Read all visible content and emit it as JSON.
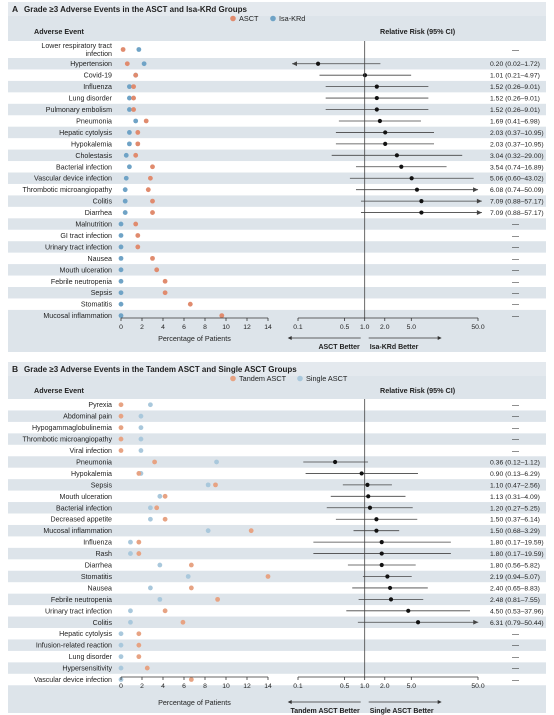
{
  "colors": {
    "panel_bg": "#dde4ea",
    "stripe": "#ffffff",
    "header_band": "#e4e9ee",
    "arm1": "#e08b6e",
    "arm2": "#6fa3c6",
    "tandem": "#e7a383",
    "single": "#a9c8dc",
    "ci_point": "#111111",
    "ci_line": "#444444",
    "ci_line_light": "#8f8f8f"
  },
  "panels": [
    {
      "letter": "A",
      "title": "Grade ≥3 Adverse Events in the ASCT and Isa-KRd Groups",
      "legend": [
        "ASCT",
        "Isa-KRd"
      ],
      "event_header": "Adverse Event",
      "rr_header": "Relative Risk (95% CI)",
      "xlabel_pct": "Percentage of Patients",
      "pct_ticks": [
        "0",
        "2",
        "4",
        "6",
        "8",
        "10",
        "12",
        "14"
      ],
      "rr_ticks": [
        "0.1",
        "0.5",
        "1.0",
        "2.0",
        "5.0",
        "50.0"
      ],
      "better_left": "ASCT Better",
      "better_right": "Isa-KRd Better"
    },
    {
      "letter": "B",
      "title": "Grade ≥3 Adverse Events in the Tandem ASCT and Single ASCT Groups",
      "legend": [
        "Tandem ASCT",
        "Single ASCT"
      ],
      "event_header": "Adverse Event",
      "rr_header": "Relative Risk (95% CI)",
      "xlabel_pct": "Percentage of Patients",
      "pct_ticks": [
        "0",
        "2",
        "4",
        "6",
        "8",
        "10",
        "12",
        "14"
      ],
      "rr_ticks": [
        "0.1",
        "0.5",
        "1.0",
        "2.0",
        "5.0",
        "50.0"
      ],
      "better_left": "Tandem ASCT Better",
      "better_right": "Single ASCT Better"
    }
  ],
  "chart_data": [
    {
      "type": "forest",
      "title": "Grade ≥3 Adverse Events in the ASCT and Isa-KRd Groups",
      "series": [
        {
          "name": "ASCT"
        },
        {
          "name": "Isa-KRd"
        }
      ],
      "pct_xlim": [
        0,
        14
      ],
      "rr_scale": "log",
      "rr_xlim": [
        0.1,
        50
      ],
      "rows": [
        {
          "event": "Lower respiratory tract infection",
          "a": 0.2,
          "b": 1.7,
          "rr": null,
          "lo": null,
          "hi": null,
          "ci": "—"
        },
        {
          "event": "Hypertension",
          "a": 0.6,
          "b": 2.2,
          "rr": 0.2,
          "lo": 0.02,
          "hi": 1.72,
          "ci": "0.20 (0.02–1.72)",
          "arrow_left": true
        },
        {
          "event": "Covid-19",
          "a": 1.4,
          "b": 1.4,
          "rr": 1.01,
          "lo": 0.21,
          "hi": 4.97,
          "ci": "1.01 (0.21–4.97)"
        },
        {
          "event": "Influenza",
          "a": 1.2,
          "b": 0.8,
          "rr": 1.52,
          "lo": 0.26,
          "hi": 9.01,
          "ci": "1.52 (0.26–9.01)"
        },
        {
          "event": "Lung disorder",
          "a": 1.2,
          "b": 0.8,
          "rr": 1.52,
          "lo": 0.26,
          "hi": 9.01,
          "ci": "1.52 (0.26–9.01)"
        },
        {
          "event": "Pulmonary embolism",
          "a": 1.2,
          "b": 0.8,
          "rr": 1.52,
          "lo": 0.26,
          "hi": 9.01,
          "ci": "1.52 (0.26–9.01)"
        },
        {
          "event": "Pneumonia",
          "a": 2.4,
          "b": 1.4,
          "rr": 1.69,
          "lo": 0.41,
          "hi": 6.98,
          "ci": "1.69 (0.41–6.98)"
        },
        {
          "event": "Hepatic cytolysis",
          "a": 1.6,
          "b": 0.8,
          "rr": 2.03,
          "lo": 0.37,
          "hi": 10.95,
          "ci": "2.03 (0.37–10.95)"
        },
        {
          "event": "Hypokalemia",
          "a": 1.6,
          "b": 0.8,
          "rr": 2.03,
          "lo": 0.37,
          "hi": 10.95,
          "ci": "2.03 (0.37–10.95)"
        },
        {
          "event": "Cholestasis",
          "a": 1.4,
          "b": 0.5,
          "rr": 3.04,
          "lo": 0.32,
          "hi": 29.0,
          "ci": "3.04 (0.32–29.00)"
        },
        {
          "event": "Bacterial infection",
          "a": 3.0,
          "b": 0.8,
          "rr": 3.54,
          "lo": 0.74,
          "hi": 16.89,
          "ci": "3.54 (0.74–16.89)"
        },
        {
          "event": "Vascular device infection",
          "a": 2.8,
          "b": 0.5,
          "rr": 5.06,
          "lo": 0.6,
          "hi": 43.02,
          "ci": "5.06 (0.60–43.02)"
        },
        {
          "event": "Thrombotic microangiopathy",
          "a": 2.6,
          "b": 0.4,
          "rr": 6.08,
          "lo": 0.74,
          "hi": 50.09,
          "ci": "6.08 (0.74–50.09)",
          "arrow_right": true
        },
        {
          "event": "Colitis",
          "a": 3.0,
          "b": 0.4,
          "rr": 7.09,
          "lo": 0.88,
          "hi": 57.17,
          "ci": "7.09 (0.88–57.17)",
          "arrow_right": true
        },
        {
          "event": "Diarrhea",
          "a": 3.0,
          "b": 0.4,
          "rr": 7.09,
          "lo": 0.88,
          "hi": 57.17,
          "ci": "7.09 (0.88–57.17)",
          "arrow_right": true
        },
        {
          "event": "Malnutrition",
          "a": 1.4,
          "b": 0.0,
          "rr": null,
          "lo": null,
          "hi": null,
          "ci": "—"
        },
        {
          "event": "GI tract infection",
          "a": 1.6,
          "b": 0.0,
          "rr": null,
          "lo": null,
          "hi": null,
          "ci": "—"
        },
        {
          "event": "Urinary tract infection",
          "a": 1.6,
          "b": 0.0,
          "rr": null,
          "lo": null,
          "hi": null,
          "ci": "—"
        },
        {
          "event": "Nausea",
          "a": 3.0,
          "b": 0.0,
          "rr": null,
          "lo": null,
          "hi": null,
          "ci": "—"
        },
        {
          "event": "Mouth ulceration",
          "a": 3.4,
          "b": 0.0,
          "rr": null,
          "lo": null,
          "hi": null,
          "ci": "—"
        },
        {
          "event": "Febrile neutropenia",
          "a": 4.2,
          "b": 0.0,
          "rr": null,
          "lo": null,
          "hi": null,
          "ci": "—"
        },
        {
          "event": "Sepsis",
          "a": 4.2,
          "b": 0.0,
          "rr": null,
          "lo": null,
          "hi": null,
          "ci": "—"
        },
        {
          "event": "Stomatitis",
          "a": 6.6,
          "b": 0.0,
          "rr": null,
          "lo": null,
          "hi": null,
          "ci": "—"
        },
        {
          "event": "Mucosal inflammation",
          "a": 9.6,
          "b": 0.0,
          "rr": null,
          "lo": null,
          "hi": null,
          "ci": "—"
        }
      ]
    },
    {
      "type": "forest",
      "title": "Grade ≥3 Adverse Events in the Tandem ASCT and Single ASCT Groups",
      "series": [
        {
          "name": "Tandem ASCT"
        },
        {
          "name": "Single ASCT"
        }
      ],
      "pct_xlim": [
        0,
        14
      ],
      "rr_scale": "log",
      "rr_xlim": [
        0.1,
        50
      ],
      "rows": [
        {
          "event": "Pyrexia",
          "a": 0.0,
          "b": 2.8,
          "rr": null,
          "lo": null,
          "hi": null,
          "ci": "—"
        },
        {
          "event": "Abdominal pain",
          "a": 0.0,
          "b": 1.9,
          "rr": null,
          "lo": null,
          "hi": null,
          "ci": "—"
        },
        {
          "event": "Hypogammaglobulinemia",
          "a": 0.0,
          "b": 1.9,
          "rr": null,
          "lo": null,
          "hi": null,
          "ci": "—"
        },
        {
          "event": "Thrombotic microangiopathy",
          "a": 0.0,
          "b": 1.9,
          "rr": null,
          "lo": null,
          "hi": null,
          "ci": "—"
        },
        {
          "event": "Viral infection",
          "a": 0.0,
          "b": 1.9,
          "rr": null,
          "lo": null,
          "hi": null,
          "ci": "—"
        },
        {
          "event": "Pneumonia",
          "a": 3.2,
          "b": 9.1,
          "rr": 0.36,
          "lo": 0.12,
          "hi": 1.12,
          "ci": "0.36 (0.12–1.12)"
        },
        {
          "event": "Hypokalemia",
          "a": 1.7,
          "b": 1.9,
          "rr": 0.9,
          "lo": 0.13,
          "hi": 6.29,
          "ci": "0.90 (0.13–6.29)"
        },
        {
          "event": "Sepsis",
          "a": 9.0,
          "b": 8.3,
          "rr": 1.1,
          "lo": 0.47,
          "hi": 2.56,
          "ci": "1.10 (0.47–2.56)"
        },
        {
          "event": "Mouth ulceration",
          "a": 4.2,
          "b": 3.7,
          "rr": 1.13,
          "lo": 0.31,
          "hi": 4.09,
          "ci": "1.13 (0.31–4.09)"
        },
        {
          "event": "Bacterial infection",
          "a": 3.4,
          "b": 2.8,
          "rr": 1.2,
          "lo": 0.27,
          "hi": 5.25,
          "ci": "1.20 (0.27–5.25)"
        },
        {
          "event": "Decreased appetite",
          "a": 4.2,
          "b": 2.8,
          "rr": 1.5,
          "lo": 0.37,
          "hi": 6.14,
          "ci": "1.50 (0.37–6.14)"
        },
        {
          "event": "Mucosal inflammation",
          "a": 12.4,
          "b": 8.3,
          "rr": 1.5,
          "lo": 0.68,
          "hi": 3.29,
          "ci": "1.50 (0.68–3.29)"
        },
        {
          "event": "Influenza",
          "a": 1.7,
          "b": 0.9,
          "rr": 1.8,
          "lo": 0.17,
          "hi": 19.59,
          "ci": "1.80 (0.17–19.59)"
        },
        {
          "event": "Rash",
          "a": 1.7,
          "b": 0.9,
          "rr": 1.8,
          "lo": 0.17,
          "hi": 19.59,
          "ci": "1.80 (0.17–19.59)"
        },
        {
          "event": "Diarrhea",
          "a": 6.7,
          "b": 3.7,
          "rr": 1.8,
          "lo": 0.56,
          "hi": 5.82,
          "ci": "1.80 (0.56–5.82)"
        },
        {
          "event": "Stomatitis",
          "a": 14.0,
          "b": 6.4,
          "rr": 2.19,
          "lo": 0.94,
          "hi": 5.07,
          "ci": "2.19 (0.94–5.07)"
        },
        {
          "event": "Nausea",
          "a": 6.7,
          "b": 2.8,
          "rr": 2.4,
          "lo": 0.65,
          "hi": 8.83,
          "ci": "2.40 (0.65–8.83)"
        },
        {
          "event": "Febrile neutropenia",
          "a": 9.2,
          "b": 3.7,
          "rr": 2.48,
          "lo": 0.81,
          "hi": 7.55,
          "ci": "2.48 (0.81–7.55)"
        },
        {
          "event": "Urinary tract infection",
          "a": 4.2,
          "b": 0.9,
          "rr": 4.5,
          "lo": 0.53,
          "hi": 37.96,
          "ci": "4.50 (0.53–37.96)"
        },
        {
          "event": "Colitis",
          "a": 5.9,
          "b": 0.9,
          "rr": 6.31,
          "lo": 0.79,
          "hi": 50.44,
          "ci": "6.31 (0.79–50.44)",
          "arrow_right": true
        },
        {
          "event": "Hepatic cytolysis",
          "a": 1.7,
          "b": 0.0,
          "rr": null,
          "lo": null,
          "hi": null,
          "ci": "—"
        },
        {
          "event": "Infusion-related reaction",
          "a": 1.7,
          "b": 0.0,
          "rr": null,
          "lo": null,
          "hi": null,
          "ci": "—"
        },
        {
          "event": "Lung disorder",
          "a": 1.7,
          "b": 0.0,
          "rr": null,
          "lo": null,
          "hi": null,
          "ci": "—"
        },
        {
          "event": "Hypersensitivity",
          "a": 2.5,
          "b": 0.0,
          "rr": null,
          "lo": null,
          "hi": null,
          "ci": "—"
        },
        {
          "event": "Vascular device infection",
          "a": 6.7,
          "b": 0.0,
          "rr": null,
          "lo": null,
          "hi": null,
          "ci": "—"
        }
      ]
    }
  ]
}
